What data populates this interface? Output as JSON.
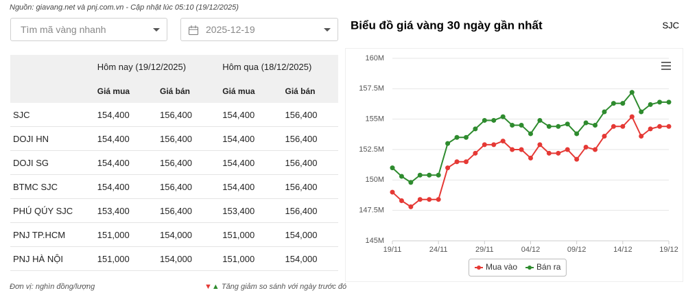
{
  "header": {
    "source": "Nguồn: giavang.net và pnj.com.vn - Cập nhật lúc 05:10 (19/12/2025)"
  },
  "filters": {
    "search_placeholder": "Tìm mã vàng nhanh",
    "date": "2025-12-19"
  },
  "table": {
    "groups": [
      "Hôm nay (19/12/2025)",
      "Hôm qua (18/12/2025)"
    ],
    "columns": [
      "Giá mua",
      "Giá bán",
      "Giá mua",
      "Giá bán"
    ],
    "rows": [
      [
        "SJC",
        "154,400",
        "156,400",
        "154,400",
        "156,400"
      ],
      [
        "DOJI HN",
        "154,400",
        "156,400",
        "154,400",
        "156,400"
      ],
      [
        "DOJI SG",
        "154,400",
        "156,400",
        "154,400",
        "156,400"
      ],
      [
        "BTMC SJC",
        "154,400",
        "156,400",
        "154,400",
        "156,400"
      ],
      [
        "PHÚ QÚY SJC",
        "153,400",
        "156,400",
        "153,400",
        "156,400"
      ],
      [
        "PNJ TP.HCM",
        "151,000",
        "154,000",
        "151,000",
        "154,000"
      ],
      [
        "PNJ HÀ NỘI",
        "151,000",
        "154,000",
        "151,000",
        "154,000"
      ]
    ]
  },
  "footer": {
    "unit": "Đơn vị: nghìn đồng/lượng",
    "note": "Tăng giảm so sánh với ngày trước đó"
  },
  "chart_data": {
    "type": "line",
    "title": "Biểu đồ giá vàng 30 ngày gần nhất",
    "label": "SJC",
    "categories": [
      "19/11",
      null,
      null,
      null,
      null,
      "24/11",
      null,
      null,
      null,
      null,
      "29/11",
      null,
      null,
      null,
      null,
      "04/12",
      null,
      null,
      null,
      null,
      "09/12",
      null,
      null,
      null,
      null,
      "14/12",
      null,
      null,
      null,
      null,
      "19/12"
    ],
    "series": [
      {
        "name": "Mua vào",
        "color": "#e53935",
        "values": [
          149,
          148.3,
          147.8,
          148.4,
          148.4,
          148.4,
          151,
          151.5,
          151.5,
          152.2,
          152.9,
          152.9,
          153.2,
          152.5,
          152.5,
          151.8,
          152.9,
          152.2,
          152.2,
          152.5,
          151.7,
          152.7,
          152.5,
          153.6,
          154.4,
          154.4,
          155.2,
          153.6,
          154.2,
          154.4,
          154.4
        ]
      },
      {
        "name": "Bán ra",
        "color": "#2e8b2e",
        "values": [
          151,
          150.3,
          149.8,
          150.4,
          150.4,
          150.4,
          153,
          153.5,
          153.5,
          154.2,
          154.9,
          154.9,
          155.2,
          154.5,
          154.5,
          153.8,
          154.9,
          154.4,
          154.4,
          154.6,
          153.8,
          154.7,
          154.5,
          155.6,
          156.3,
          156.3,
          157.2,
          155.6,
          156.2,
          156.4,
          156.4
        ]
      }
    ],
    "ylim": [
      145,
      160
    ],
    "yticks": [
      {
        "value": 145,
        "label": "145M"
      },
      {
        "value": 147.5,
        "label": "147.5M"
      },
      {
        "value": 150,
        "label": "150M"
      },
      {
        "value": 152.5,
        "label": "152.5M"
      },
      {
        "value": 155,
        "label": "155M"
      },
      {
        "value": 157.5,
        "label": "157.5M"
      },
      {
        "value": 160,
        "label": "160M"
      }
    ],
    "grid": true,
    "legend": "bottom"
  }
}
